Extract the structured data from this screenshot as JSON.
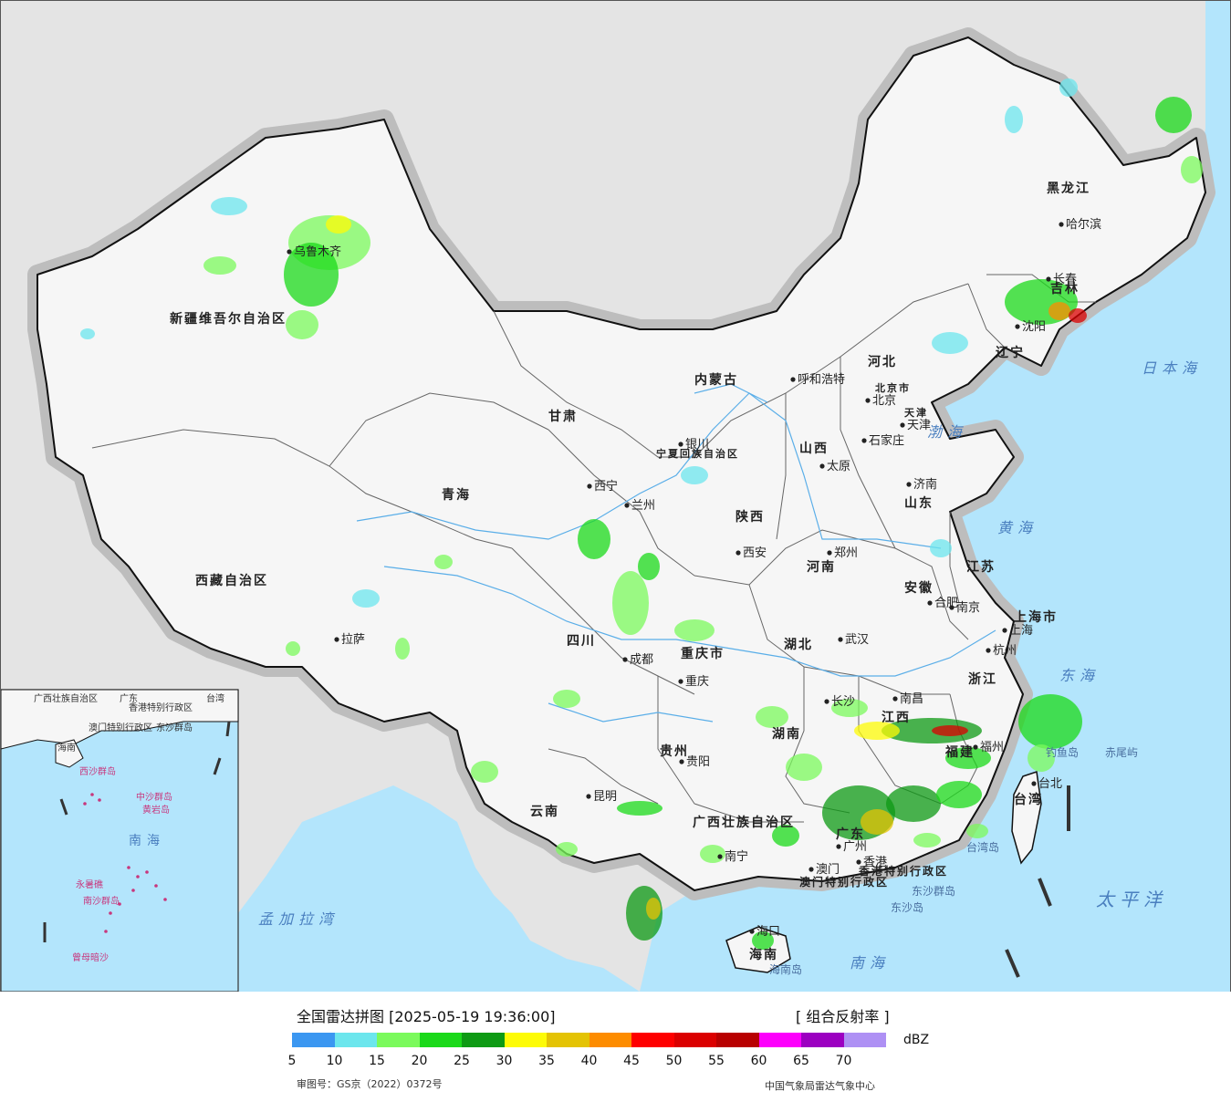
{
  "legend": {
    "title": "全国雷达拼图 [2025-05-19 19:36:00]",
    "product": "[ 组合反射率 ]",
    "unit": "dBZ",
    "colors": [
      "#3b97f1",
      "#6ce6ed",
      "#7bfa5c",
      "#1bd91a",
      "#0e9a14",
      "#fdfb07",
      "#e4c304",
      "#fd8c00",
      "#fe0000",
      "#db0000",
      "#b80000",
      "#fd00fc",
      "#9c00c1",
      "#ae90f4"
    ],
    "ticks": [
      "5",
      "10",
      "15",
      "20",
      "25",
      "30",
      "35",
      "40",
      "45",
      "50",
      "55",
      "60",
      "65",
      "70"
    ],
    "approval_number": "审图号：GS京（2022）0372号",
    "agency": "中国气象局雷达气象中心"
  },
  "map": {
    "provinces": [
      "新疆维吾尔自治区",
      "西藏自治区",
      "青海",
      "甘肃",
      "内蒙古",
      "四川",
      "云南",
      "黑龙江",
      "吉林",
      "辽宁",
      "河北",
      "山西",
      "陕西",
      "宁夏回族自治区",
      "河南",
      "山东",
      "江苏",
      "安徽",
      "湖北",
      "湖南",
      "江西",
      "浙江",
      "福建",
      "广东",
      "广西壮族自治区",
      "贵州",
      "重庆市",
      "海南",
      "台湾",
      "上海市",
      "北京市",
      "天津",
      "香港特别行政区",
      "澳门特别行政区"
    ],
    "cities": [
      "乌鲁木齐",
      "拉萨",
      "西宁",
      "兰州",
      "银川",
      "呼和浩特",
      "北京",
      "天津",
      "石家庄",
      "太原",
      "济南",
      "西安",
      "郑州",
      "合肥",
      "南京",
      "上海",
      "杭州",
      "武汉",
      "成都",
      "重庆",
      "长沙",
      "南昌",
      "福州",
      "台北",
      "贵阳",
      "昆明",
      "南宁",
      "广州",
      "香港",
      "澳门",
      "海口",
      "沈阳",
      "长春",
      "哈尔滨"
    ],
    "seas": [
      "渤海",
      "黄海",
      "东海",
      "日本海",
      "太平洋",
      "南海",
      "孟加拉湾"
    ],
    "islands": [
      "赤尾屿",
      "钓鱼岛",
      "台湾岛",
      "东沙群岛",
      "东沙岛",
      "海南岛"
    ],
    "inset_labels": [
      "广西壮族自治区",
      "广东",
      "澳门特别行政区",
      "香港特别行政区",
      "台湾",
      "东沙群岛",
      "海南",
      "西沙群岛",
      "中沙群岛",
      "黄岩岛",
      "南沙群岛",
      "永暑礁",
      "曾母暗沙",
      "南海"
    ],
    "inset_sea": "南海"
  }
}
